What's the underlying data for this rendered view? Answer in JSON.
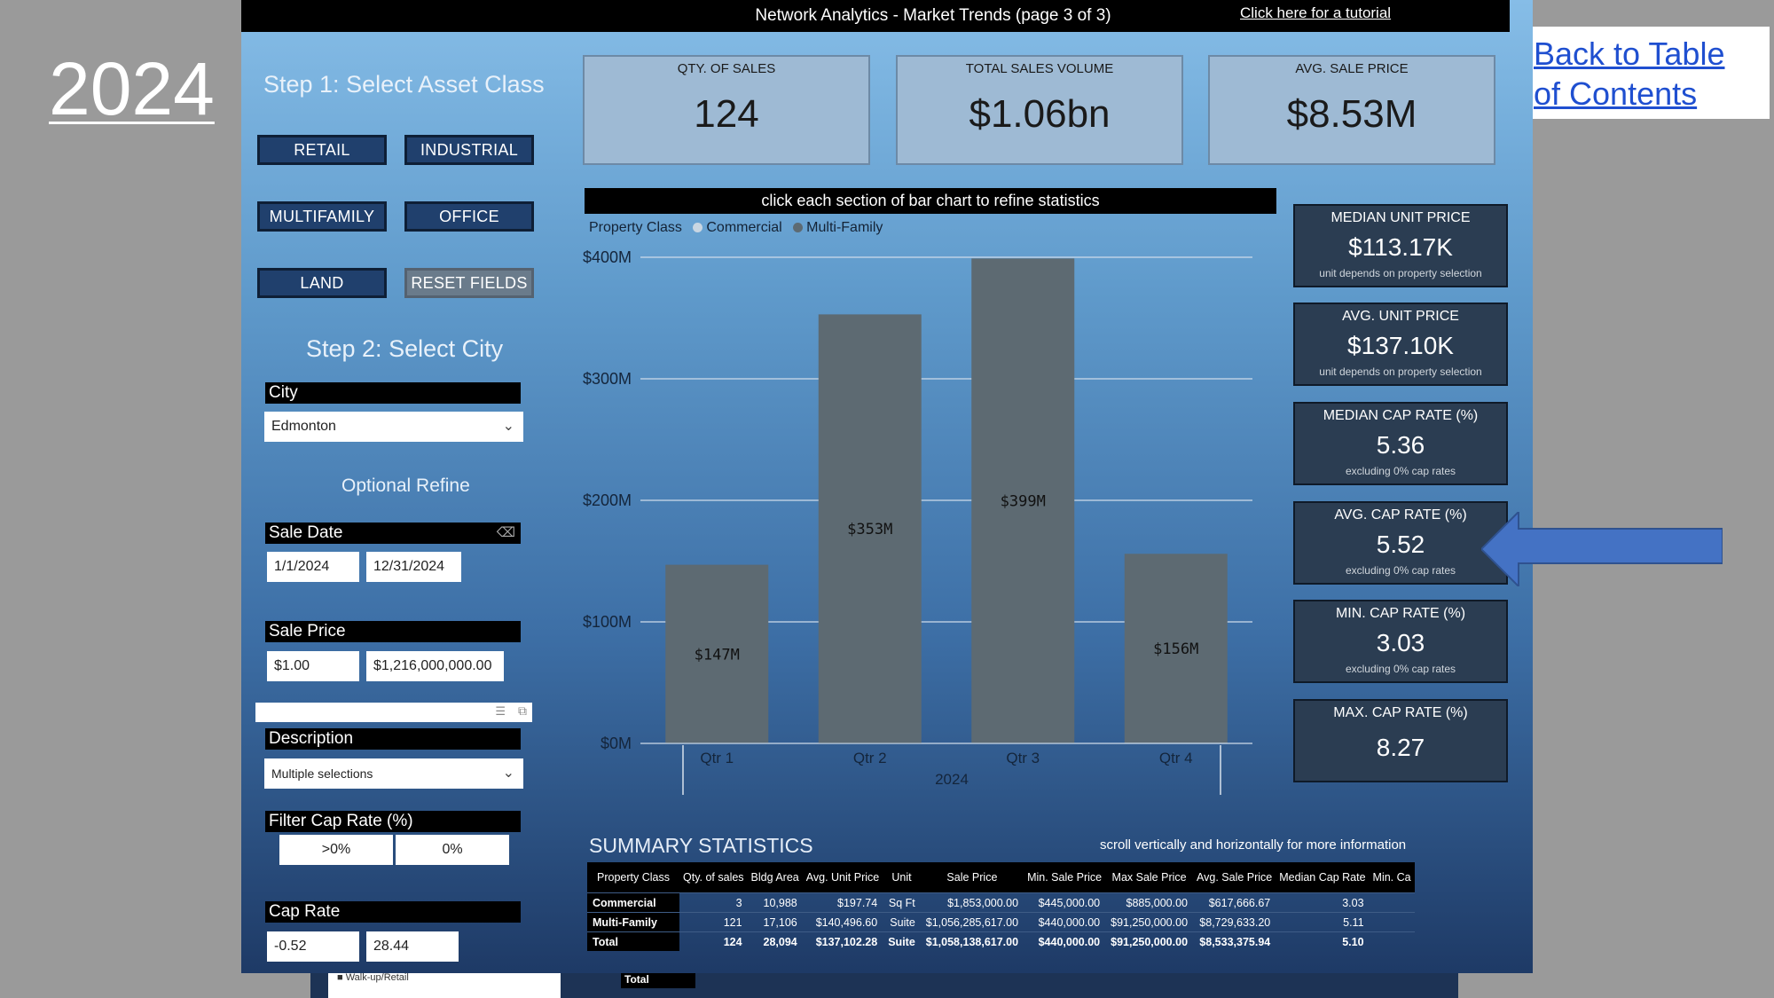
{
  "slide": {
    "year": "2024",
    "toc_link": "Back to Table of Contents"
  },
  "header": {
    "title": "Network Analytics - Market Trends (page 3 of 3)",
    "tutorial_link": "Click here for a tutorial"
  },
  "step1": {
    "title": "Step 1: Select Asset Class",
    "buttons": [
      "RETAIL",
      "INDUSTRIAL",
      "MULTIFAMILY",
      "OFFICE",
      "LAND",
      "RESET FIELDS"
    ]
  },
  "step2": {
    "title": "Step 2: Select City",
    "city_label": "City",
    "city_value": "Edmonton",
    "optional_refine": "Optional Refine",
    "sale_date_label": "Sale Date",
    "sale_date_from": "1/1/2024",
    "sale_date_to": "12/31/2024",
    "sale_price_label": "Sale Price",
    "sale_price_min": "$1.00",
    "sale_price_max": "$1,216,000,000.00",
    "description_label": "Description",
    "description_value": "Multiple selections",
    "filter_cap_label": "Filter Cap Rate (%)",
    "filter_cap_options": [
      ">0%",
      "0%"
    ],
    "cap_rate_label": "Cap Rate",
    "cap_rate_min": "-0.52",
    "cap_rate_max": "28.44"
  },
  "kpis": [
    {
      "label": "QTY. OF SALES",
      "value": "124"
    },
    {
      "label": "TOTAL SALES VOLUME",
      "value": "$1.06bn"
    },
    {
      "label": "AVG. SALE PRICE",
      "value": "$8.53M"
    }
  ],
  "stats": [
    {
      "label": "MEDIAN UNIT PRICE",
      "value": "$113.17K",
      "note": "unit depends on property selection"
    },
    {
      "label": "AVG. UNIT PRICE",
      "value": "$137.10K",
      "note": "unit depends on property selection"
    },
    {
      "label": "MEDIAN CAP RATE (%)",
      "value": "5.36",
      "note": "excluding 0% cap rates"
    },
    {
      "label": "AVG. CAP RATE (%)",
      "value": "5.52",
      "note": "excluding 0% cap rates"
    },
    {
      "label": "MIN. CAP RATE (%)",
      "value": "3.03",
      "note": "excluding 0% cap rates"
    },
    {
      "label": "MAX. CAP RATE (%)",
      "value": "8.27",
      "note": ""
    }
  ],
  "chart_header": "click each section of bar chart to refine statistics",
  "chart_data": {
    "type": "bar",
    "legend_title": "Property Class",
    "categories": [
      "Qtr 1",
      "Qtr 2",
      "Qtr 3",
      "Qtr 4"
    ],
    "x_group_label": "2024",
    "series": [
      {
        "name": "Commercial",
        "values": [
          0.5,
          0.4,
          0.5,
          0.6
        ],
        "color": "#c9d6e2"
      },
      {
        "name": "Multi-Family",
        "values": [
          146.5,
          352.6,
          398.5,
          155.4
        ],
        "color": "#5d6a72"
      }
    ],
    "totals": [
      147,
      353,
      399,
      156
    ],
    "data_labels": [
      "$147M",
      "$353M",
      "$399M",
      "$156M"
    ],
    "y_ticks": [
      0,
      100,
      200,
      300,
      400
    ],
    "y_tick_labels": [
      "$0M",
      "$100M",
      "$200M",
      "$300M",
      "$400M"
    ],
    "ylim": [
      0,
      400
    ],
    "grid": true,
    "legend_position": "top-left"
  },
  "summary": {
    "title": "SUMMARY STATISTICS",
    "note": "scroll vertically and horizontally for more information",
    "columns": [
      "Property Class",
      "Qty. of sales",
      "Bldg Area",
      "Avg. Unit Price",
      "Unit",
      "Sale Price",
      "Min. Sale Price",
      "Max Sale Price",
      "Avg. Sale Price",
      "Median Cap Rate",
      "Min. Ca"
    ],
    "rows": [
      [
        "Commercial",
        "3",
        "10,988",
        "$197.74",
        "Sq Ft",
        "$1,853,000.00",
        "$445,000.00",
        "$885,000.00",
        "$617,666.67",
        "3.03",
        ""
      ],
      [
        "Multi-Family",
        "121",
        "17,106",
        "$140,496.60",
        "Suite",
        "$1,056,285,617.00",
        "$440,000.00",
        "$91,250,000.00",
        "$8,729,633.20",
        "5.11",
        ""
      ],
      [
        "Total",
        "124",
        "28,094",
        "$137,102.28",
        "Suite",
        "$1,058,138,617.00",
        "$440,000.00",
        "$91,250,000.00",
        "$8,533,375.94",
        "5.10",
        ""
      ]
    ]
  },
  "behind": {
    "checkbox_label": "Walk-up/Retail",
    "total_label": "Total"
  },
  "colors": {
    "arrow": "#4472c4",
    "dashboard_bg_top": "#86bde7",
    "dashboard_bg_bottom": "#1e3a66"
  }
}
